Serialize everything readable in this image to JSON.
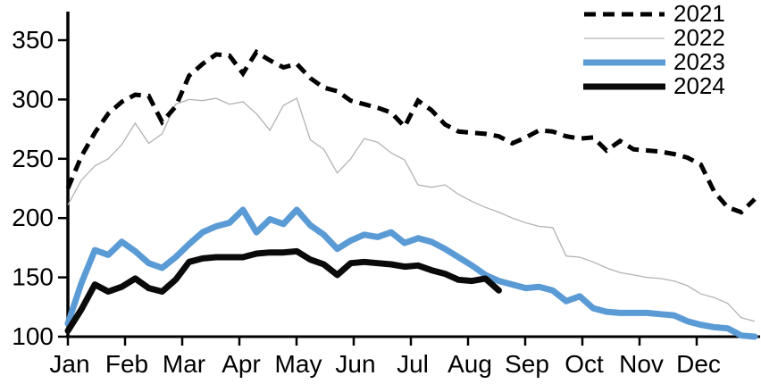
{
  "chart_data": {
    "type": "line",
    "title": "",
    "xlabel": "",
    "ylabel": "",
    "x_axis": {
      "categories": [
        "Jan",
        "Feb",
        "Mar",
        "Apr",
        "May",
        "Jun",
        "Jul",
        "Aug",
        "Sep",
        "Oct",
        "Nov",
        "Dec"
      ],
      "points_per_year": 52,
      "unit": "weekly"
    },
    "y_axis": {
      "ticks": [
        100,
        150,
        200,
        250,
        300,
        350
      ],
      "min": 100,
      "max": 370,
      "grid": false
    },
    "legend_position": "top-right",
    "series": [
      {
        "name": "2021",
        "color": "#000000",
        "style": "dashed",
        "values": [
          225,
          252,
          272,
          288,
          298,
          304,
          303,
          281,
          294,
          320,
          330,
          338,
          337,
          322,
          340,
          333,
          327,
          330,
          318,
          310,
          307,
          299,
          296,
          293,
          289,
          277,
          299,
          291,
          279,
          273,
          272,
          271,
          269,
          263,
          268,
          274,
          273,
          269,
          267,
          268,
          257,
          265,
          258,
          257,
          256,
          254,
          251,
          245,
          222,
          209,
          205,
          216
        ]
      },
      {
        "name": "2022",
        "color": "#b3b3b3",
        "style": "thin",
        "values": [
          211,
          232,
          244,
          250,
          262,
          280,
          263,
          271,
          296,
          300,
          299,
          301,
          296,
          298,
          288,
          274,
          295,
          301,
          266,
          258,
          238,
          250,
          267,
          264,
          255,
          249,
          228,
          226,
          228,
          220,
          214,
          209,
          205,
          200,
          196,
          193,
          192,
          168,
          167,
          163,
          158,
          154,
          152,
          150,
          149,
          147,
          143,
          136,
          133,
          128,
          116,
          113
        ]
      },
      {
        "name": "2023",
        "color": "#5b9bd5",
        "style": "solid",
        "values": [
          111,
          145,
          173,
          169,
          180,
          172,
          162,
          158,
          167,
          178,
          188,
          193,
          196,
          207,
          188,
          199,
          195,
          207,
          194,
          186,
          174,
          181,
          186,
          184,
          188,
          179,
          183,
          180,
          174,
          167,
          160,
          152,
          147,
          144,
          141,
          142,
          139,
          130,
          134,
          124,
          121,
          120,
          120,
          120,
          119,
          118,
          113,
          110,
          108,
          107,
          101,
          100
        ]
      },
      {
        "name": "2024",
        "color": "#0a0a0a",
        "style": "solid",
        "values": [
          105,
          123,
          144,
          138,
          142,
          149,
          141,
          138,
          148,
          163,
          166,
          167,
          167,
          167,
          170,
          171,
          171,
          172,
          165,
          161,
          152,
          162,
          163,
          162,
          161,
          159,
          160,
          156,
          153,
          148,
          147,
          149,
          139
        ]
      }
    ]
  }
}
